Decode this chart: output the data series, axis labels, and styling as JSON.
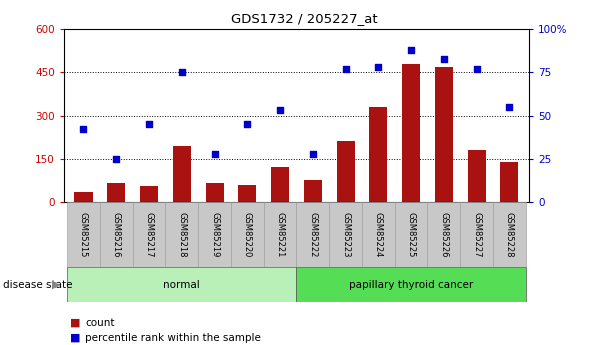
{
  "title": "GDS1732 / 205227_at",
  "categories": [
    "GSM85215",
    "GSM85216",
    "GSM85217",
    "GSM85218",
    "GSM85219",
    "GSM85220",
    "GSM85221",
    "GSM85222",
    "GSM85223",
    "GSM85224",
    "GSM85225",
    "GSM85226",
    "GSM85227",
    "GSM85228"
  ],
  "bar_values": [
    35,
    65,
    55,
    195,
    65,
    60,
    120,
    75,
    210,
    330,
    480,
    470,
    180,
    140
  ],
  "dot_values": [
    42,
    25,
    45,
    75,
    28,
    45,
    53,
    28,
    77,
    78,
    88,
    83,
    77,
    55
  ],
  "groups": [
    {
      "label": "normal",
      "start": 0,
      "end": 7
    },
    {
      "label": "papillary thyroid cancer",
      "start": 7,
      "end": 14
    }
  ],
  "bar_color": "#aa1111",
  "dot_color": "#0000cc",
  "left_axis_color": "#cc0000",
  "right_axis_color": "#0000cc",
  "ylim_left": [
    0,
    600
  ],
  "ylim_right": [
    0,
    100
  ],
  "yticks_left": [
    0,
    150,
    300,
    450,
    600
  ],
  "ytick_labels_left": [
    "0",
    "150",
    "300",
    "450",
    "600"
  ],
  "yticks_right": [
    0,
    25,
    50,
    75,
    100
  ],
  "ytick_labels_right": [
    "0",
    "25",
    "50",
    "75",
    "100%"
  ],
  "legend_count_label": "count",
  "legend_pct_label": "percentile rank within the sample",
  "disease_state_label": "disease state",
  "bg_color": "#ffffff",
  "plot_bg_color": "#ffffff",
  "tick_bg_color": "#c8c8c8",
  "group_normal_color": "#b8f0b8",
  "group_cancer_color": "#55dd55"
}
